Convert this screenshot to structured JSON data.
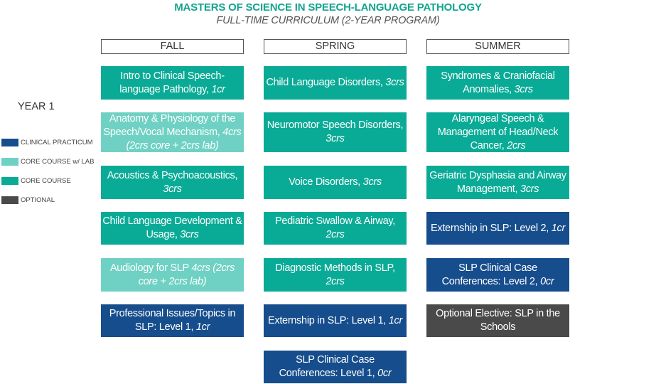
{
  "title": "MASTERS OF SCIENCE IN SPEECH-LANGUAGE PATHOLOGY",
  "subtitle": "FULL-TIME CURRICULUM (2-YEAR PROGRAM)",
  "year_label": "YEAR 1",
  "colors": {
    "clinical": "#164d8c",
    "core_lab": "#6fd1c3",
    "core": "#0aab96",
    "optional": "#4a4a4a"
  },
  "legend": [
    {
      "key": "clinical",
      "label": "CLINICAL PRACTICUM"
    },
    {
      "key": "core_lab",
      "label": "CORE COURSE w/ LAB"
    },
    {
      "key": "core",
      "label": "CORE COURSE"
    },
    {
      "key": "optional",
      "label": "OPTIONAL"
    }
  ],
  "columns": [
    {
      "header": "FALL",
      "courses": [
        {
          "name": "Intro to Clinical Speech-language Pathology,",
          "credits": "1cr",
          "type": "core"
        },
        {
          "name": "Anatomy & Physiology of the Speech/Vocal Mechanism,",
          "credits": "4crs (2crs core + 2crs lab)",
          "type": "core_lab"
        },
        {
          "name": "Acoustics & Psychoacoustics,",
          "credits": "3crs",
          "type": "core"
        },
        {
          "name": "Child Language Development & Usage,",
          "credits": "3crs",
          "type": "core"
        },
        {
          "name": "Audiology for SLP",
          "credits": "4crs (2crs core + 2crs lab)",
          "type": "core_lab"
        },
        {
          "name": "Professional Issues/Topics in SLP: Level 1,",
          "credits": "1cr",
          "type": "clinical"
        }
      ]
    },
    {
      "header": "SPRING",
      "courses": [
        {
          "name": "Child Language Disorders,",
          "credits": "3crs",
          "type": "core"
        },
        {
          "name": "Neuromotor Speech Disorders,",
          "credits": "3crs",
          "type": "core"
        },
        {
          "name": "Voice Disorders,",
          "credits": "3crs",
          "type": "core"
        },
        {
          "name": "Pediatric Swallow & Airway,",
          "credits": "2crs",
          "type": "core"
        },
        {
          "name": "Diagnostic Methods in SLP,",
          "credits": "2crs",
          "type": "core"
        },
        {
          "name": "Externship in SLP: Level 1,",
          "credits": "1cr",
          "type": "clinical"
        },
        {
          "name": "SLP Clinical Case Conferences: Level 1,",
          "credits": "0cr",
          "type": "clinical"
        }
      ]
    },
    {
      "header": "SUMMER",
      "courses": [
        {
          "name": "Syndromes & Craniofacial Anomalies,",
          "credits": "3crs",
          "type": "core"
        },
        {
          "name": "Alaryngeal Speech & Management of Head/Neck Cancer,",
          "credits": "2crs",
          "type": "core"
        },
        {
          "name": "Geriatric Dysphasia and Airway Management,",
          "credits": "3crs",
          "type": "core"
        },
        {
          "name": "Externship in SLP: Level 2,",
          "credits": "1cr",
          "type": "clinical"
        },
        {
          "name": "SLP Clinical Case Conferences: Level 2,",
          "credits": "0cr",
          "type": "clinical"
        },
        {
          "name": "Optional Elective: SLP in the Schools",
          "credits": "",
          "type": "optional"
        }
      ]
    }
  ]
}
